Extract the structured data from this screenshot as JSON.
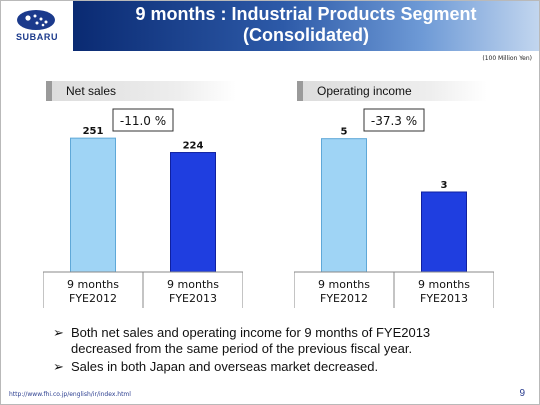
{
  "header": {
    "logo_text": "SUBARU",
    "title_line1": "9 months : Industrial Products Segment",
    "title_line2": "(Consolidated)",
    "unit_note": "(100 Million Yen)"
  },
  "colors": {
    "title_bar_dark": "#0a2a72",
    "bar_fye2012": "#9fd4f5",
    "bar_fye2013": "#1f3ee0"
  },
  "chart_data": [
    {
      "type": "bar",
      "title": "Net sales",
      "change_label": "-11.0 %",
      "categories": [
        "9 months FYE2012",
        "9 months FYE2013"
      ],
      "category_lines": [
        [
          "9 months",
          "FYE2012"
        ],
        [
          "9 months",
          "FYE2013"
        ]
      ],
      "values": [
        251,
        224
      ],
      "ylim": [
        0,
        300
      ]
    },
    {
      "type": "bar",
      "title": "Operating income",
      "change_label": "-37.3 %",
      "categories": [
        "9 months FYE2012",
        "9 months FYE2013"
      ],
      "category_lines": [
        [
          "9 months",
          "FYE2012"
        ],
        [
          "9 months",
          "FYE2013"
        ]
      ],
      "values": [
        5,
        3
      ],
      "ylim": [
        0,
        6
      ]
    }
  ],
  "bullets": [
    {
      "marker": "➢",
      "lines": [
        "Both net sales and operating income for 9 months of FYE2013",
        "decreased from the same period of the previous fiscal year."
      ]
    },
    {
      "marker": "➢",
      "lines": [
        "Sales in both Japan and overseas market decreased."
      ]
    }
  ],
  "footer": {
    "url": "http://www.fhi.co.jp/english/ir/index.html",
    "page_number": "9"
  }
}
